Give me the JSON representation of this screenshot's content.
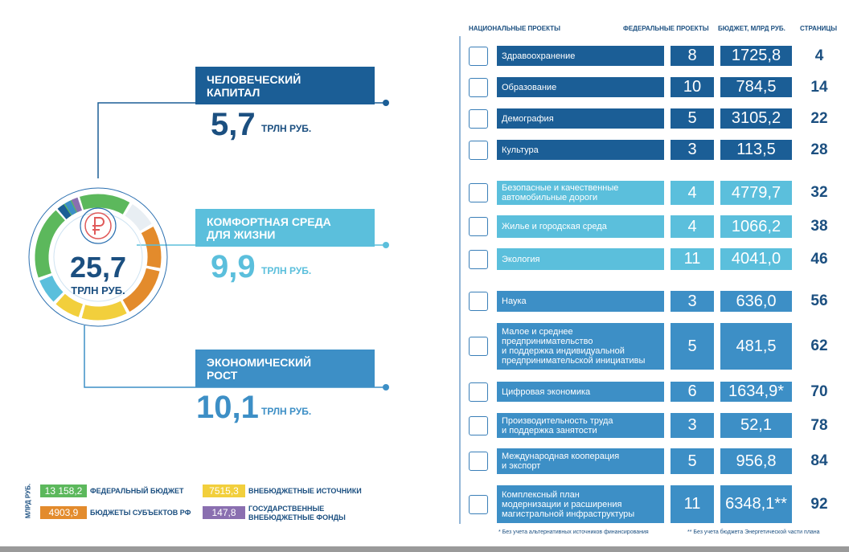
{
  "header": {
    "columns": [
      "НАЦИОНАЛЬНЫЕ ПРОЕКТЫ",
      "ФЕДЕРАЛЬНЫЕ ПРОЕКТЫ",
      "БЮДЖЕТ, МЛРД РУБ.",
      "СТРАНИЦЫ"
    ]
  },
  "donut": {
    "total": "25,7",
    "unit": "ТРЛН РУБ."
  },
  "groups": [
    {
      "title": "ЧЕЛОВЕЧЕСКИЙ\nКАПИТАЛ",
      "amount": "5,7",
      "unit": "ТРЛН РУБ.",
      "color": "#1b5e96",
      "projects": [
        {
          "name": "Здравоохранение",
          "federal": 8,
          "budget": "1725,8",
          "page": 4
        },
        {
          "name": "Образование",
          "federal": 10,
          "budget": "784,5",
          "page": 14
        },
        {
          "name": "Демография",
          "federal": 5,
          "budget": "3105,2",
          "page": 22
        },
        {
          "name": "Культура",
          "federal": 3,
          "budget": "113,5",
          "page": 28
        }
      ]
    },
    {
      "title": "КОМФОРТНАЯ СРЕДА\nДЛЯ ЖИЗНИ",
      "amount": "9,9",
      "unit": "ТРЛН РУБ.",
      "color": "#5bbfdc",
      "projects": [
        {
          "name": "Безопасные и качественные\nавтомобильные дороги",
          "federal": 4,
          "budget": "4779,7",
          "page": 32
        },
        {
          "name": "Жилье и городская среда",
          "federal": 4,
          "budget": "1066,2",
          "page": 38
        },
        {
          "name": "Экология",
          "federal": 11,
          "budget": "4041,0",
          "page": 46
        }
      ]
    },
    {
      "title": "ЭКОНОМИЧЕСКИЙ\nРОСТ",
      "amount": "10,1",
      "unit": "ТРЛН РУБ.",
      "color": "#3d8fc6",
      "projects": [
        {
          "name": "Наука",
          "federal": 3,
          "budget": "636,0",
          "page": 56
        },
        {
          "name": "Малое и среднее\nпредпринимательство\nи поддержка индивидуальной\nпредпринимательской инициативы",
          "federal": 5,
          "budget": "481,5",
          "page": 62
        },
        {
          "name": "Цифровая экономика",
          "federal": 6,
          "budget": "1634,9*",
          "page": 70
        },
        {
          "name": "Производительность труда\nи поддержка занятости",
          "federal": 3,
          "budget": "52,1",
          "page": 78
        },
        {
          "name": "Международная кооперация\nи экспорт",
          "federal": 5,
          "budget": "956,8",
          "page": 84
        },
        {
          "name": "Комплексный план\nмодернизации и расширения\nмагистральной инфраструктуры",
          "federal": 11,
          "budget": "6348,1**",
          "page": 92
        }
      ]
    }
  ],
  "legend": {
    "unit": "МЛРД РУБ.",
    "items": [
      {
        "value": "13 158,2",
        "label": "ФЕДЕРАЛЬНЫЙ БЮДЖЕТ",
        "color": "#5cb85c"
      },
      {
        "value": "4903,9",
        "label": "БЮДЖЕТЫ СУБЪЕКТОВ РФ",
        "color": "#e38b2c"
      },
      {
        "value": "7515,3",
        "label": "ВНЕБЮДЖЕТНЫЕ ИСТОЧНИКИ",
        "color": "#f2cf3c"
      },
      {
        "value": "147,8",
        "label": "ГОСУДАРСТВЕННЫЕ\nВНЕБЮДЖЕТНЫЕ ФОНДЫ",
        "color": "#8a6fb0"
      }
    ]
  },
  "footnotes": [
    "* Без учета альтернативных источников финансирования",
    "** Без учета бюджета Энергетической части плана"
  ]
}
